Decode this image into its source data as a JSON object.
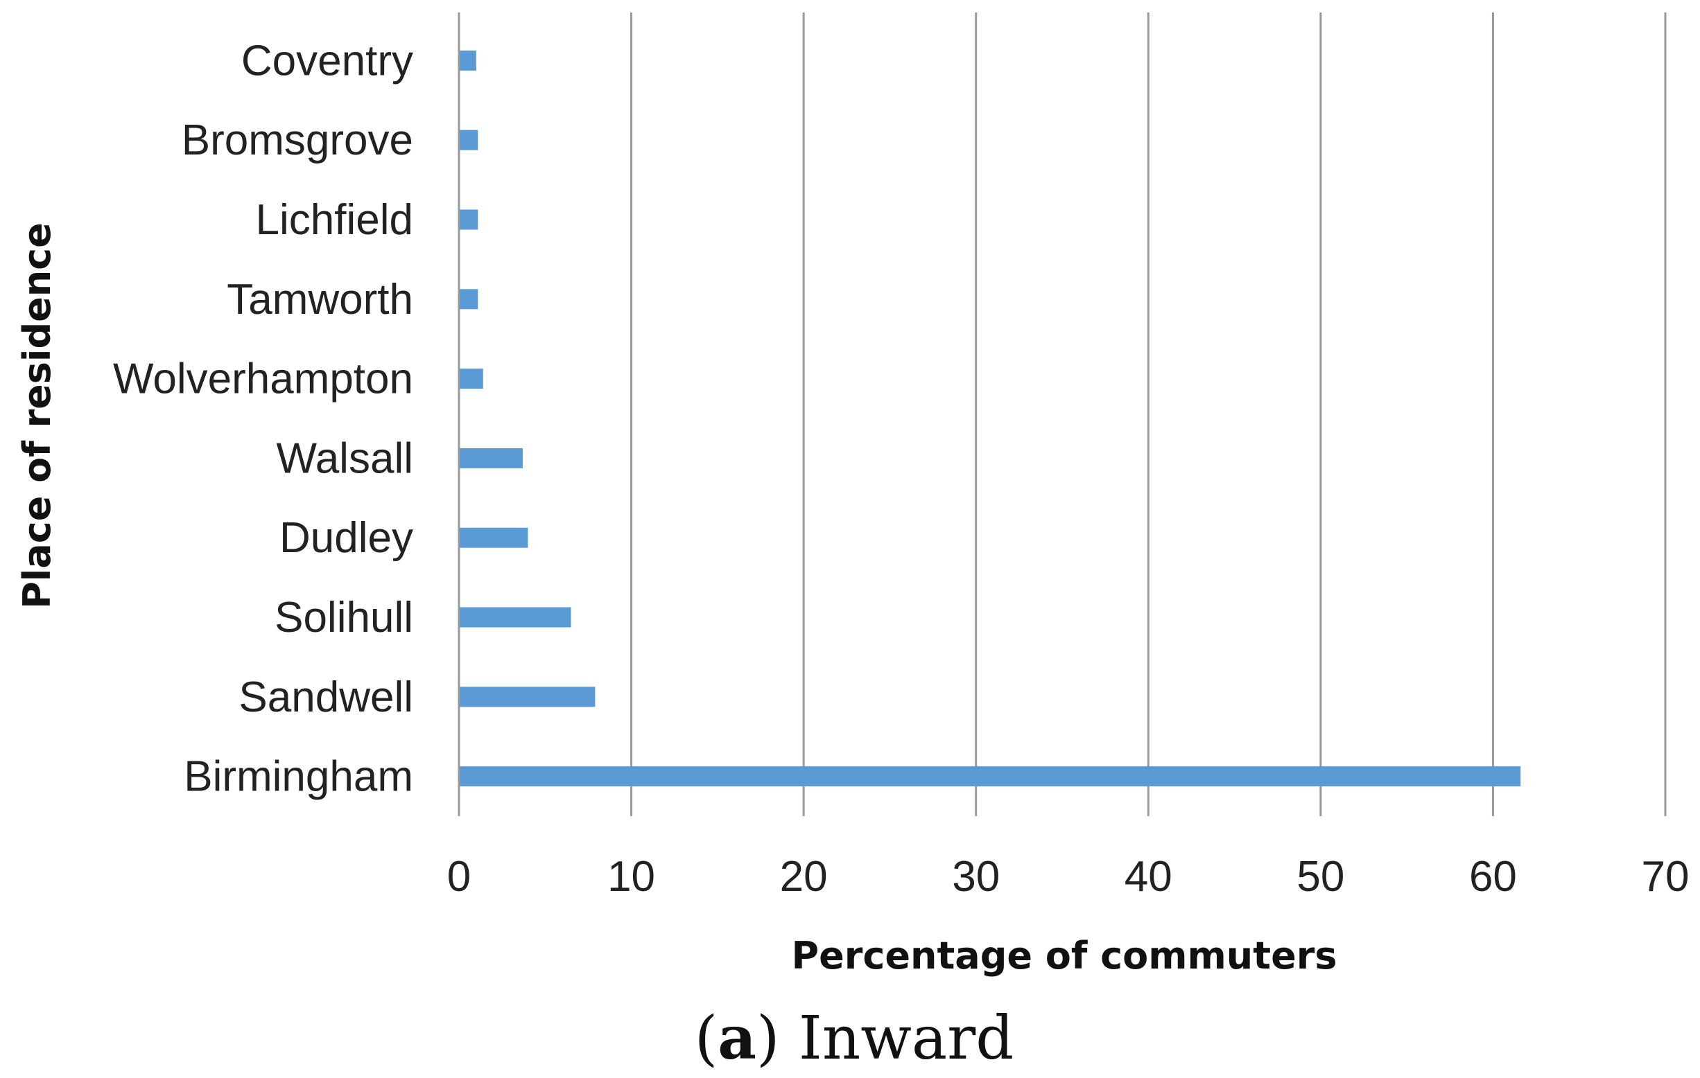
{
  "chart_data": {
    "type": "bar",
    "orientation": "horizontal",
    "categories": [
      "Birmingham",
      "Sandwell",
      "Solihull",
      "Dudley",
      "Walsall",
      "Wolverhampton",
      "Tamworth",
      "Lichfield",
      "Bromsgrove",
      "Coventry"
    ],
    "values": [
      61.6,
      7.9,
      6.5,
      4.0,
      3.7,
      1.4,
      1.1,
      1.1,
      1.1,
      1.0
    ],
    "xlabel": "Percentage of commuters",
    "ylabel": "Place of residence",
    "xlim": [
      0,
      70
    ],
    "xticks": [
      "0",
      "10",
      "20",
      "30",
      "40",
      "50",
      "60",
      "70"
    ],
    "grid": "vertical gridlines",
    "bar_color": "#5b9bd5",
    "grid_color": "#9a9a9a"
  },
  "caption": {
    "open_paren": "(",
    "letter": "a",
    "close_paren": ")",
    "text": " Inward"
  }
}
